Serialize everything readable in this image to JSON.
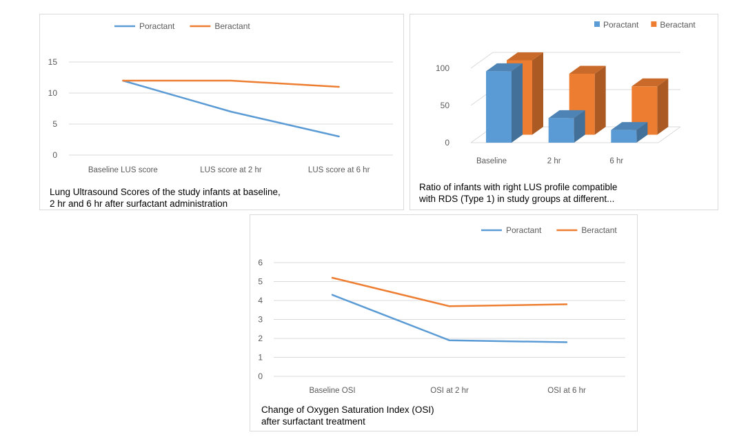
{
  "colors": {
    "poractant": "#5b9bd5",
    "beractant": "#ed7d31",
    "grid": "#d9d9d9",
    "tick_text": "#595959"
  },
  "chart_data": [
    {
      "type": "line",
      "caption_lines": [
        "Lung Ultrasound Scores of the study infants at baseline,",
        "2 hr and 6 hr after surfactant administration"
      ],
      "categories": [
        "Baseline LUS score",
        "LUS score at 2 hr",
        "LUS score at 6 hr"
      ],
      "series": [
        {
          "name": "Poractant",
          "values": [
            12,
            7,
            3
          ]
        },
        {
          "name": "Beractant",
          "values": [
            12,
            12,
            11
          ]
        }
      ],
      "ylim": [
        0,
        15
      ],
      "yticks": [
        0,
        5,
        10,
        15
      ],
      "grid": true,
      "legend": "top"
    },
    {
      "type": "bar",
      "style": "3d",
      "caption_lines": [
        "Ratio of infants with right LUS profile compatible",
        "with RDS (Type 1) in study groups at different..."
      ],
      "categories": [
        "Baseline",
        "2 hr",
        "6 hr"
      ],
      "series": [
        {
          "name": "Poractant",
          "values": [
            96,
            33,
            17
          ]
        },
        {
          "name": "Beractant",
          "values": [
            100,
            82,
            65
          ]
        }
      ],
      "ylim": [
        0,
        100
      ],
      "yticks": [
        0,
        50,
        100
      ],
      "grid": true,
      "legend": "top-right"
    },
    {
      "type": "line",
      "caption_lines": [
        "Change of Oxygen Saturation Index (OSI)",
        "after surfactant treatment"
      ],
      "categories": [
        "Baseline OSI",
        "OSI at 2 hr",
        "OSI at 6 hr"
      ],
      "series": [
        {
          "name": "Poractant",
          "values": [
            4.3,
            1.9,
            1.8
          ]
        },
        {
          "name": "Beractant",
          "values": [
            5.2,
            3.7,
            3.8
          ]
        }
      ],
      "ylim": [
        0,
        6
      ],
      "yticks": [
        0,
        1,
        2,
        3,
        4,
        5,
        6
      ],
      "grid": true,
      "legend": "top-right"
    }
  ]
}
